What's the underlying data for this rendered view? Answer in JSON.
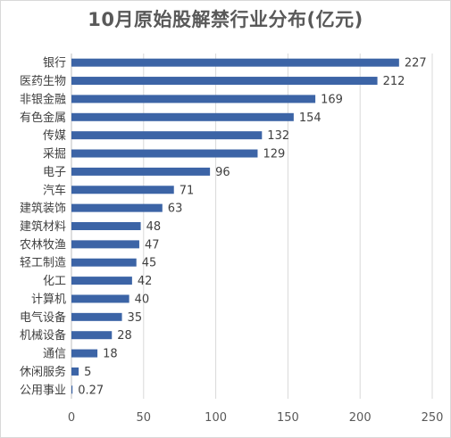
{
  "chart_data": {
    "type": "bar",
    "orientation": "horizontal",
    "title": "10月原始股解禁行业分布(亿元)",
    "categories": [
      "银行",
      "医药生物",
      "非银金融",
      "有色金属",
      "传媒",
      "采掘",
      "电子",
      "汽车",
      "建筑装饰",
      "建筑材料",
      "农林牧渔",
      "轻工制造",
      "化工",
      "计算机",
      "电气设备",
      "机械设备",
      "通信",
      "休闲服务",
      "公用事业"
    ],
    "values": [
      227,
      212,
      169,
      154,
      132,
      129,
      96,
      71,
      63,
      48,
      47,
      45,
      42,
      40,
      35,
      28,
      18,
      5,
      0.27
    ],
    "value_labels": [
      "227",
      "212",
      "169",
      "154",
      "132",
      "129",
      "96",
      "71",
      "63",
      "48",
      "47",
      "45",
      "42",
      "40",
      "35",
      "28",
      "18",
      "5",
      "0.27"
    ],
    "xlim": [
      0,
      250
    ],
    "xticks": [
      "0",
      "50",
      "100",
      "150",
      "200",
      "250"
    ],
    "bar_color": "#3c64a6",
    "grid": true,
    "legend": "none"
  }
}
